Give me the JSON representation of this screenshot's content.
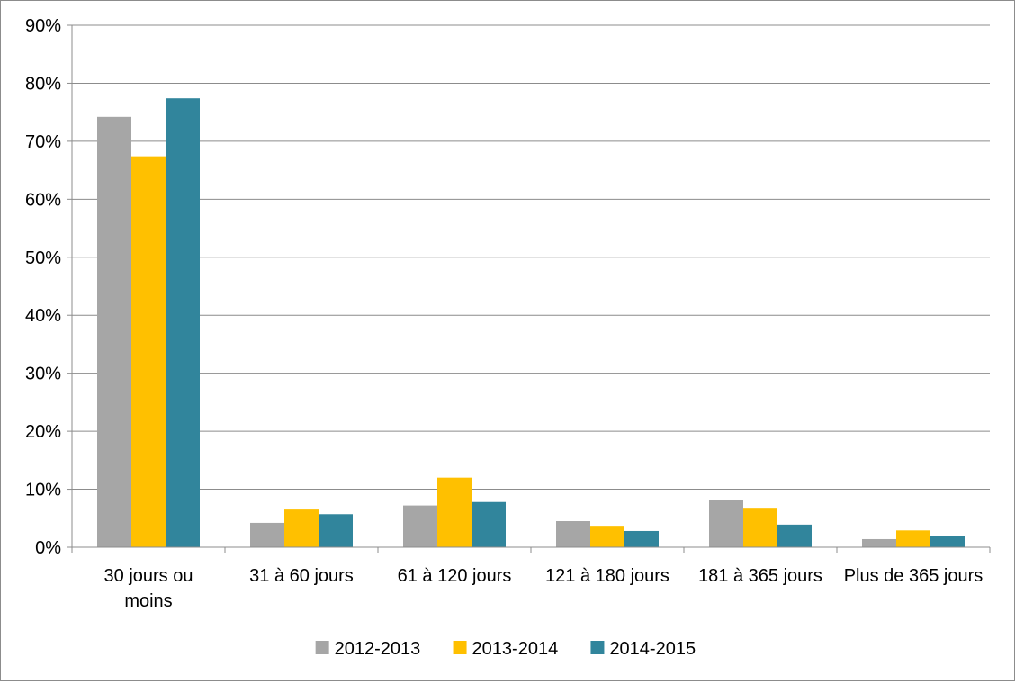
{
  "chart_data": {
    "type": "bar",
    "title": "",
    "xlabel": "",
    "ylabel": "",
    "ylim": [
      0,
      90
    ],
    "y_ticks": [
      "0%",
      "10%",
      "20%",
      "30%",
      "40%",
      "50%",
      "60%",
      "70%",
      "80%",
      "90%"
    ],
    "y_unit": "%",
    "grid": true,
    "legend_position": "bottom",
    "categories": [
      [
        "30 jours ou",
        "moins"
      ],
      [
        "31 à 60 jours"
      ],
      [
        "61 à 120 jours"
      ],
      [
        "121 à 180 jours"
      ],
      [
        "181 à 365 jours"
      ],
      [
        "Plus de 365 jours"
      ]
    ],
    "series": [
      {
        "name": "2012-2013",
        "color": "#a6a6a6",
        "values": [
          74.2,
          4.2,
          7.2,
          4.5,
          8.1,
          1.4
        ]
      },
      {
        "name": "2013-2014",
        "color": "#ffc000",
        "values": [
          67.4,
          6.5,
          12.0,
          3.7,
          6.8,
          2.9
        ]
      },
      {
        "name": "2014-2015",
        "color": "#31859c",
        "values": [
          77.4,
          5.7,
          7.8,
          2.8,
          3.9,
          2.0
        ]
      }
    ]
  }
}
